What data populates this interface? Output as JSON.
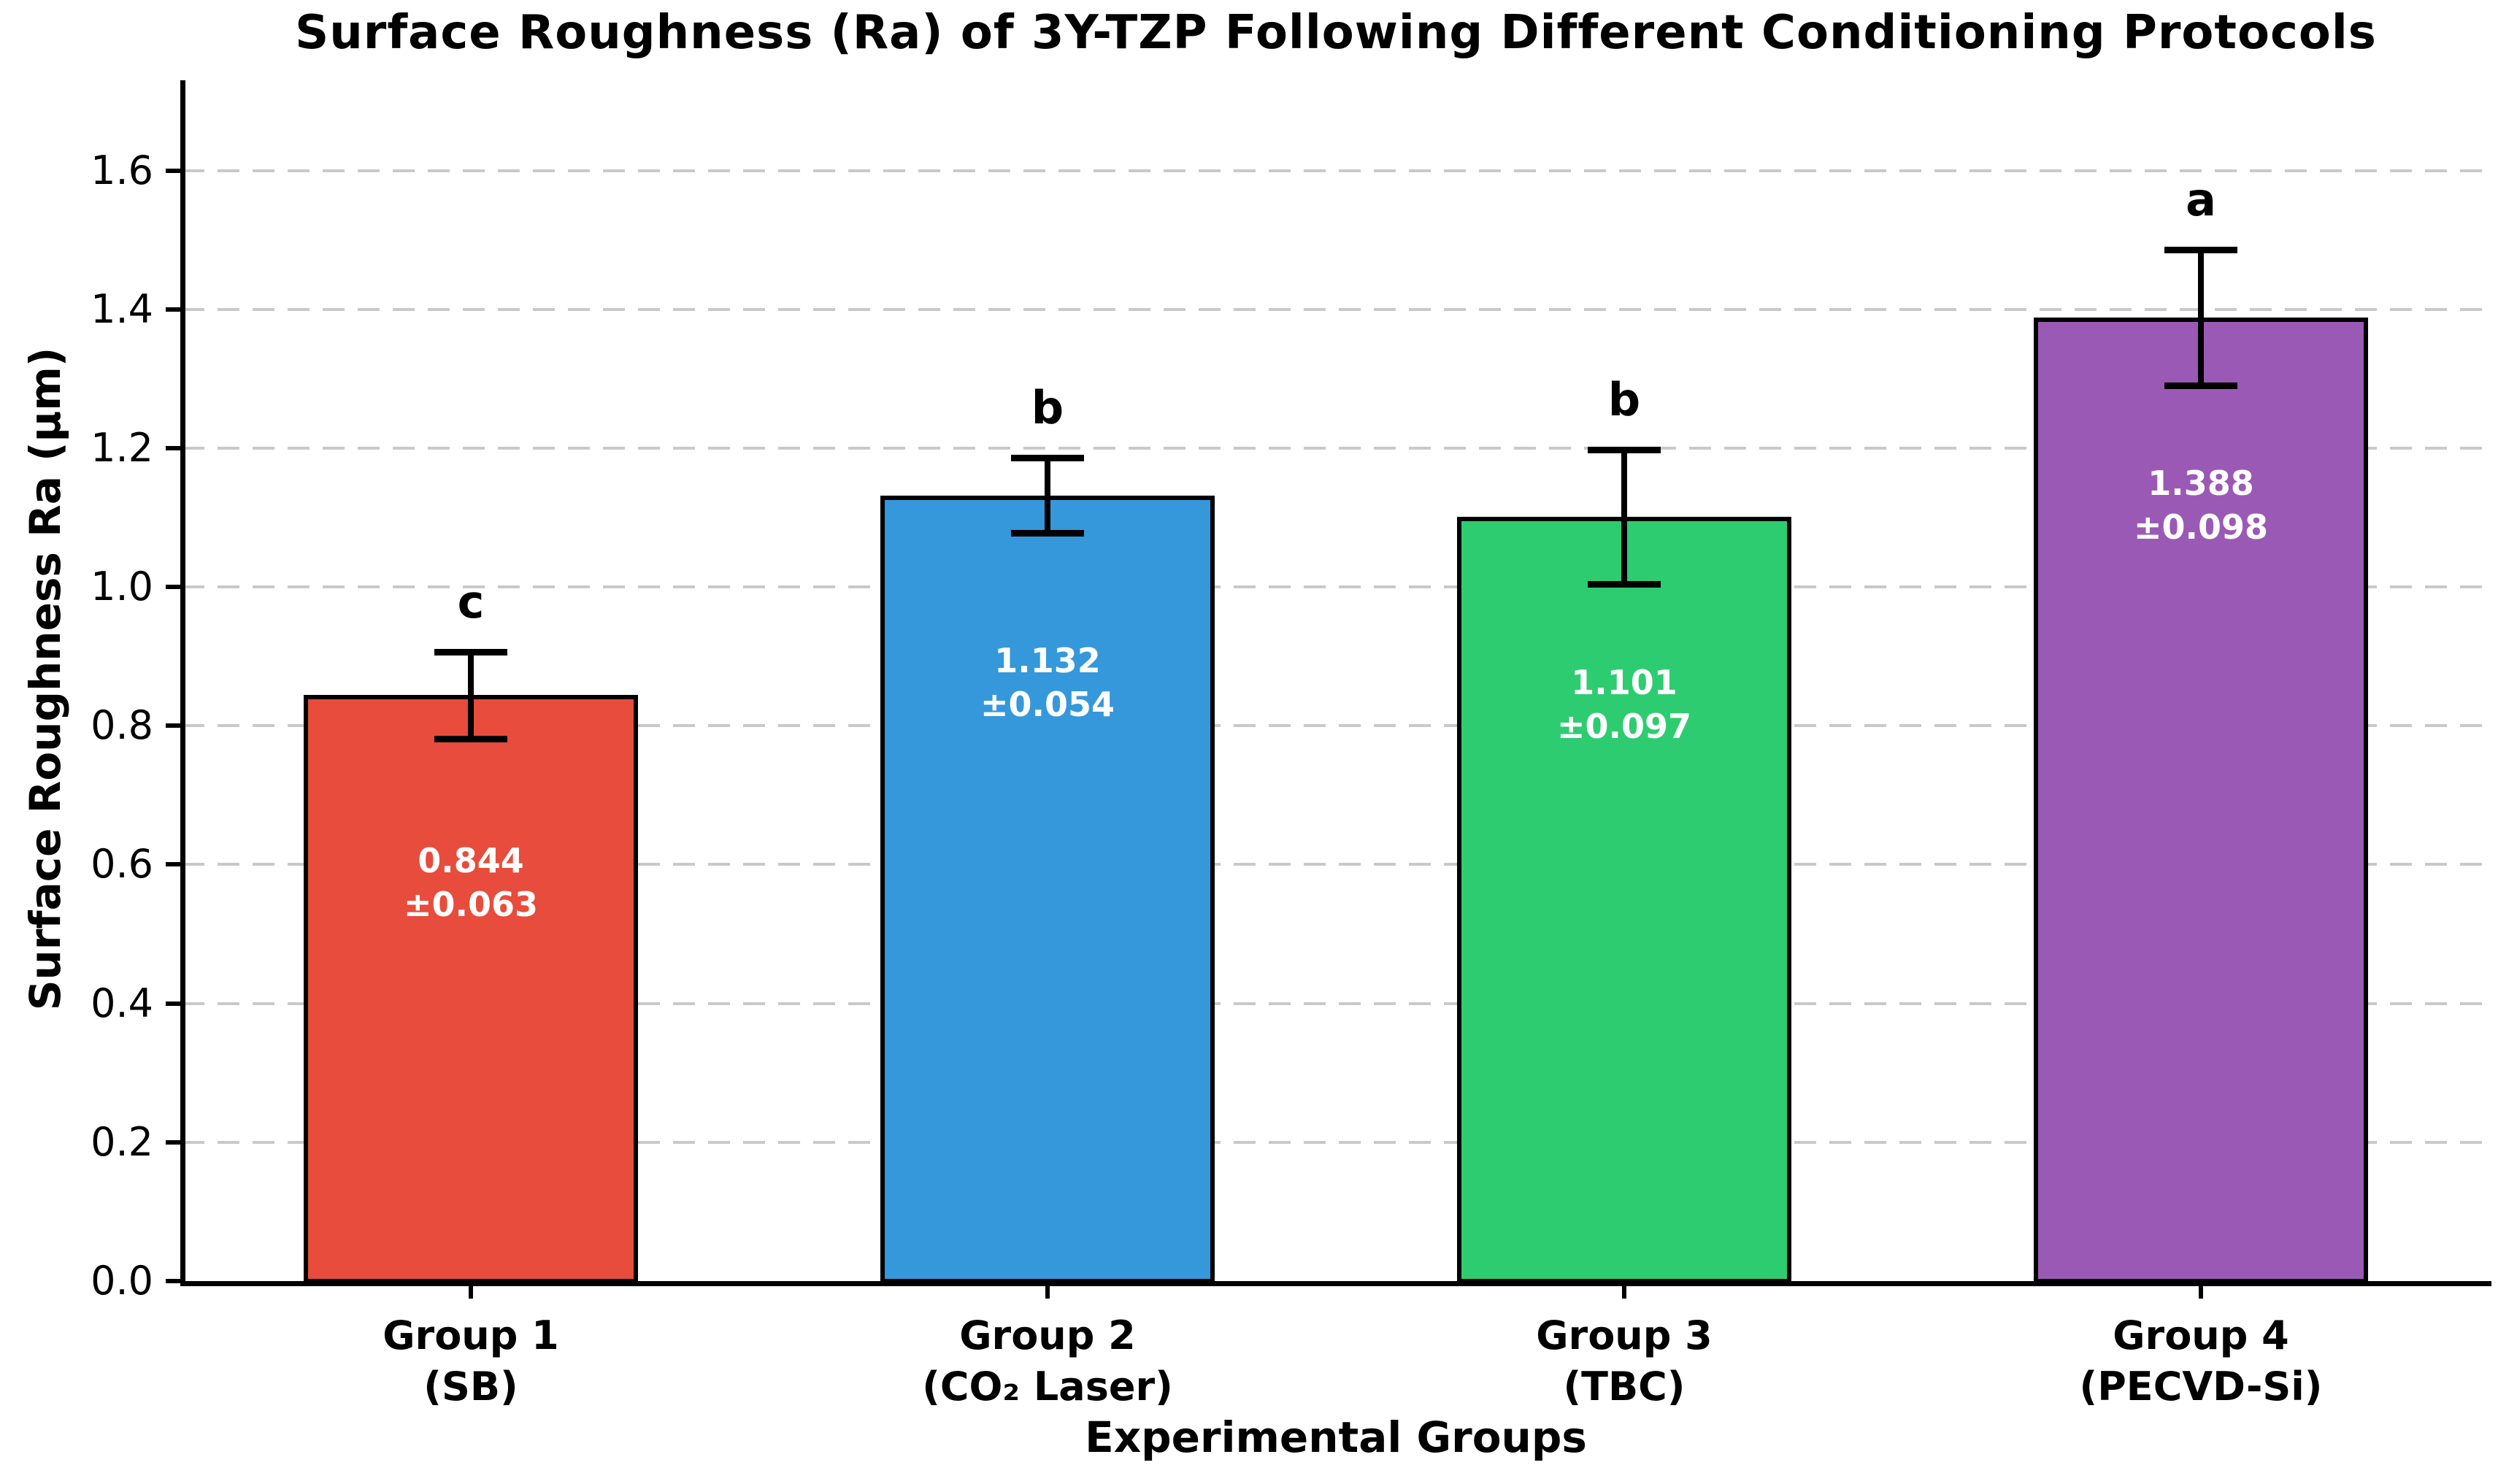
{
  "chart_data": {
    "type": "bar",
    "title": "Surface Roughness (Ra) of 3Y-TZP Following Different Conditioning Protocols",
    "xlabel": "Experimental Groups",
    "ylabel": "Surface Roughness Ra (μm)",
    "ylim": [
      0,
      1.73
    ],
    "yticks": [
      {
        "value": 0.0,
        "label": "0.0"
      },
      {
        "value": 0.2,
        "label": "0.2"
      },
      {
        "value": 0.4,
        "label": "0.4"
      },
      {
        "value": 0.6,
        "label": "0.6"
      },
      {
        "value": 0.8,
        "label": "0.8"
      },
      {
        "value": 1.0,
        "label": "1.0"
      },
      {
        "value": 1.2,
        "label": "1.2"
      },
      {
        "value": 1.4,
        "label": "1.4"
      },
      {
        "value": 1.6,
        "label": "1.6"
      }
    ],
    "grid": {
      "axis": "y",
      "style": "dashed",
      "color": "#c9c9c9",
      "on": true
    },
    "legend": "none",
    "categories": [
      {
        "name": "Group 1",
        "protocol": "(SB)"
      },
      {
        "name": "Group 2",
        "protocol": "(CO₂ Laser)"
      },
      {
        "name": "Group 3",
        "protocol": "(TBC)"
      },
      {
        "name": "Group 4",
        "protocol": "(PECVD-Si)"
      }
    ],
    "series": [
      {
        "name": "Surface Roughness Ra (μm)",
        "values": [
          0.844,
          1.132,
          1.101,
          1.388
        ],
        "errors": [
          0.063,
          0.054,
          0.097,
          0.098
        ],
        "value_labels": [
          [
            "0.844",
            "±0.063"
          ],
          [
            "1.132",
            "±0.054"
          ],
          [
            "1.101",
            "±0.097"
          ],
          [
            "1.388",
            "±0.098"
          ]
        ],
        "significance_letters": [
          "c",
          "b",
          "b",
          "a"
        ],
        "bar_colors": [
          "#e74c3c",
          "#3498db",
          "#2ecc71",
          "#9b59b6"
        ],
        "bar_edge_color": "#000000",
        "error_bar_color": "#000000",
        "value_label_color": "#ffffff"
      }
    ]
  }
}
